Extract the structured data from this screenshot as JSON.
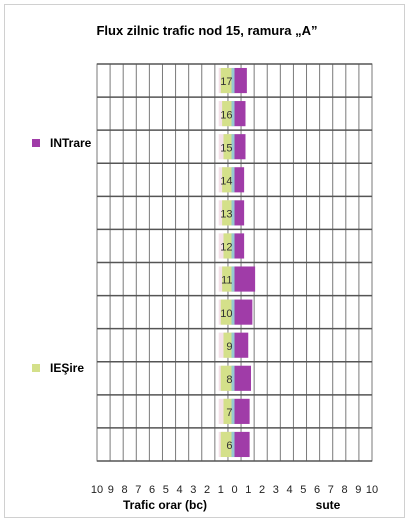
{
  "chart_data": {
    "type": "bar",
    "orientation": "horizontal",
    "title": "Flux zilnic trafic nod 15, ramura „A”",
    "xlabel_left": "Trafic orar (bc)",
    "xlabel_right": "sute",
    "x_tick_labels": [
      "10",
      "9",
      "8",
      "7",
      "6",
      "5",
      "4",
      "3",
      "2",
      "1",
      "0",
      "1",
      "2",
      "3",
      "4",
      "5",
      "6",
      "7",
      "8",
      "9",
      "10"
    ],
    "categories": [
      "17",
      "16",
      "15",
      "14",
      "13",
      "12",
      "11",
      "10",
      "9",
      "8",
      "7",
      "6"
    ],
    "series": [
      {
        "name": "INTrare",
        "color": "#a03ca8",
        "side": "right",
        "values": [
          0.9,
          0.8,
          0.8,
          0.7,
          0.7,
          0.7,
          1.5,
          1.3,
          1.0,
          1.2,
          1.1,
          1.1
        ]
      },
      {
        "name": "IEŞire",
        "color": "#d4e08a",
        "side": "left",
        "values": [
          1.0,
          0.9,
          0.8,
          0.9,
          0.9,
          0.8,
          0.9,
          1.0,
          0.8,
          1.0,
          0.8,
          1.0
        ]
      }
    ],
    "xlim": [
      -10,
      10
    ],
    "grid": true,
    "legend_position": "left"
  }
}
